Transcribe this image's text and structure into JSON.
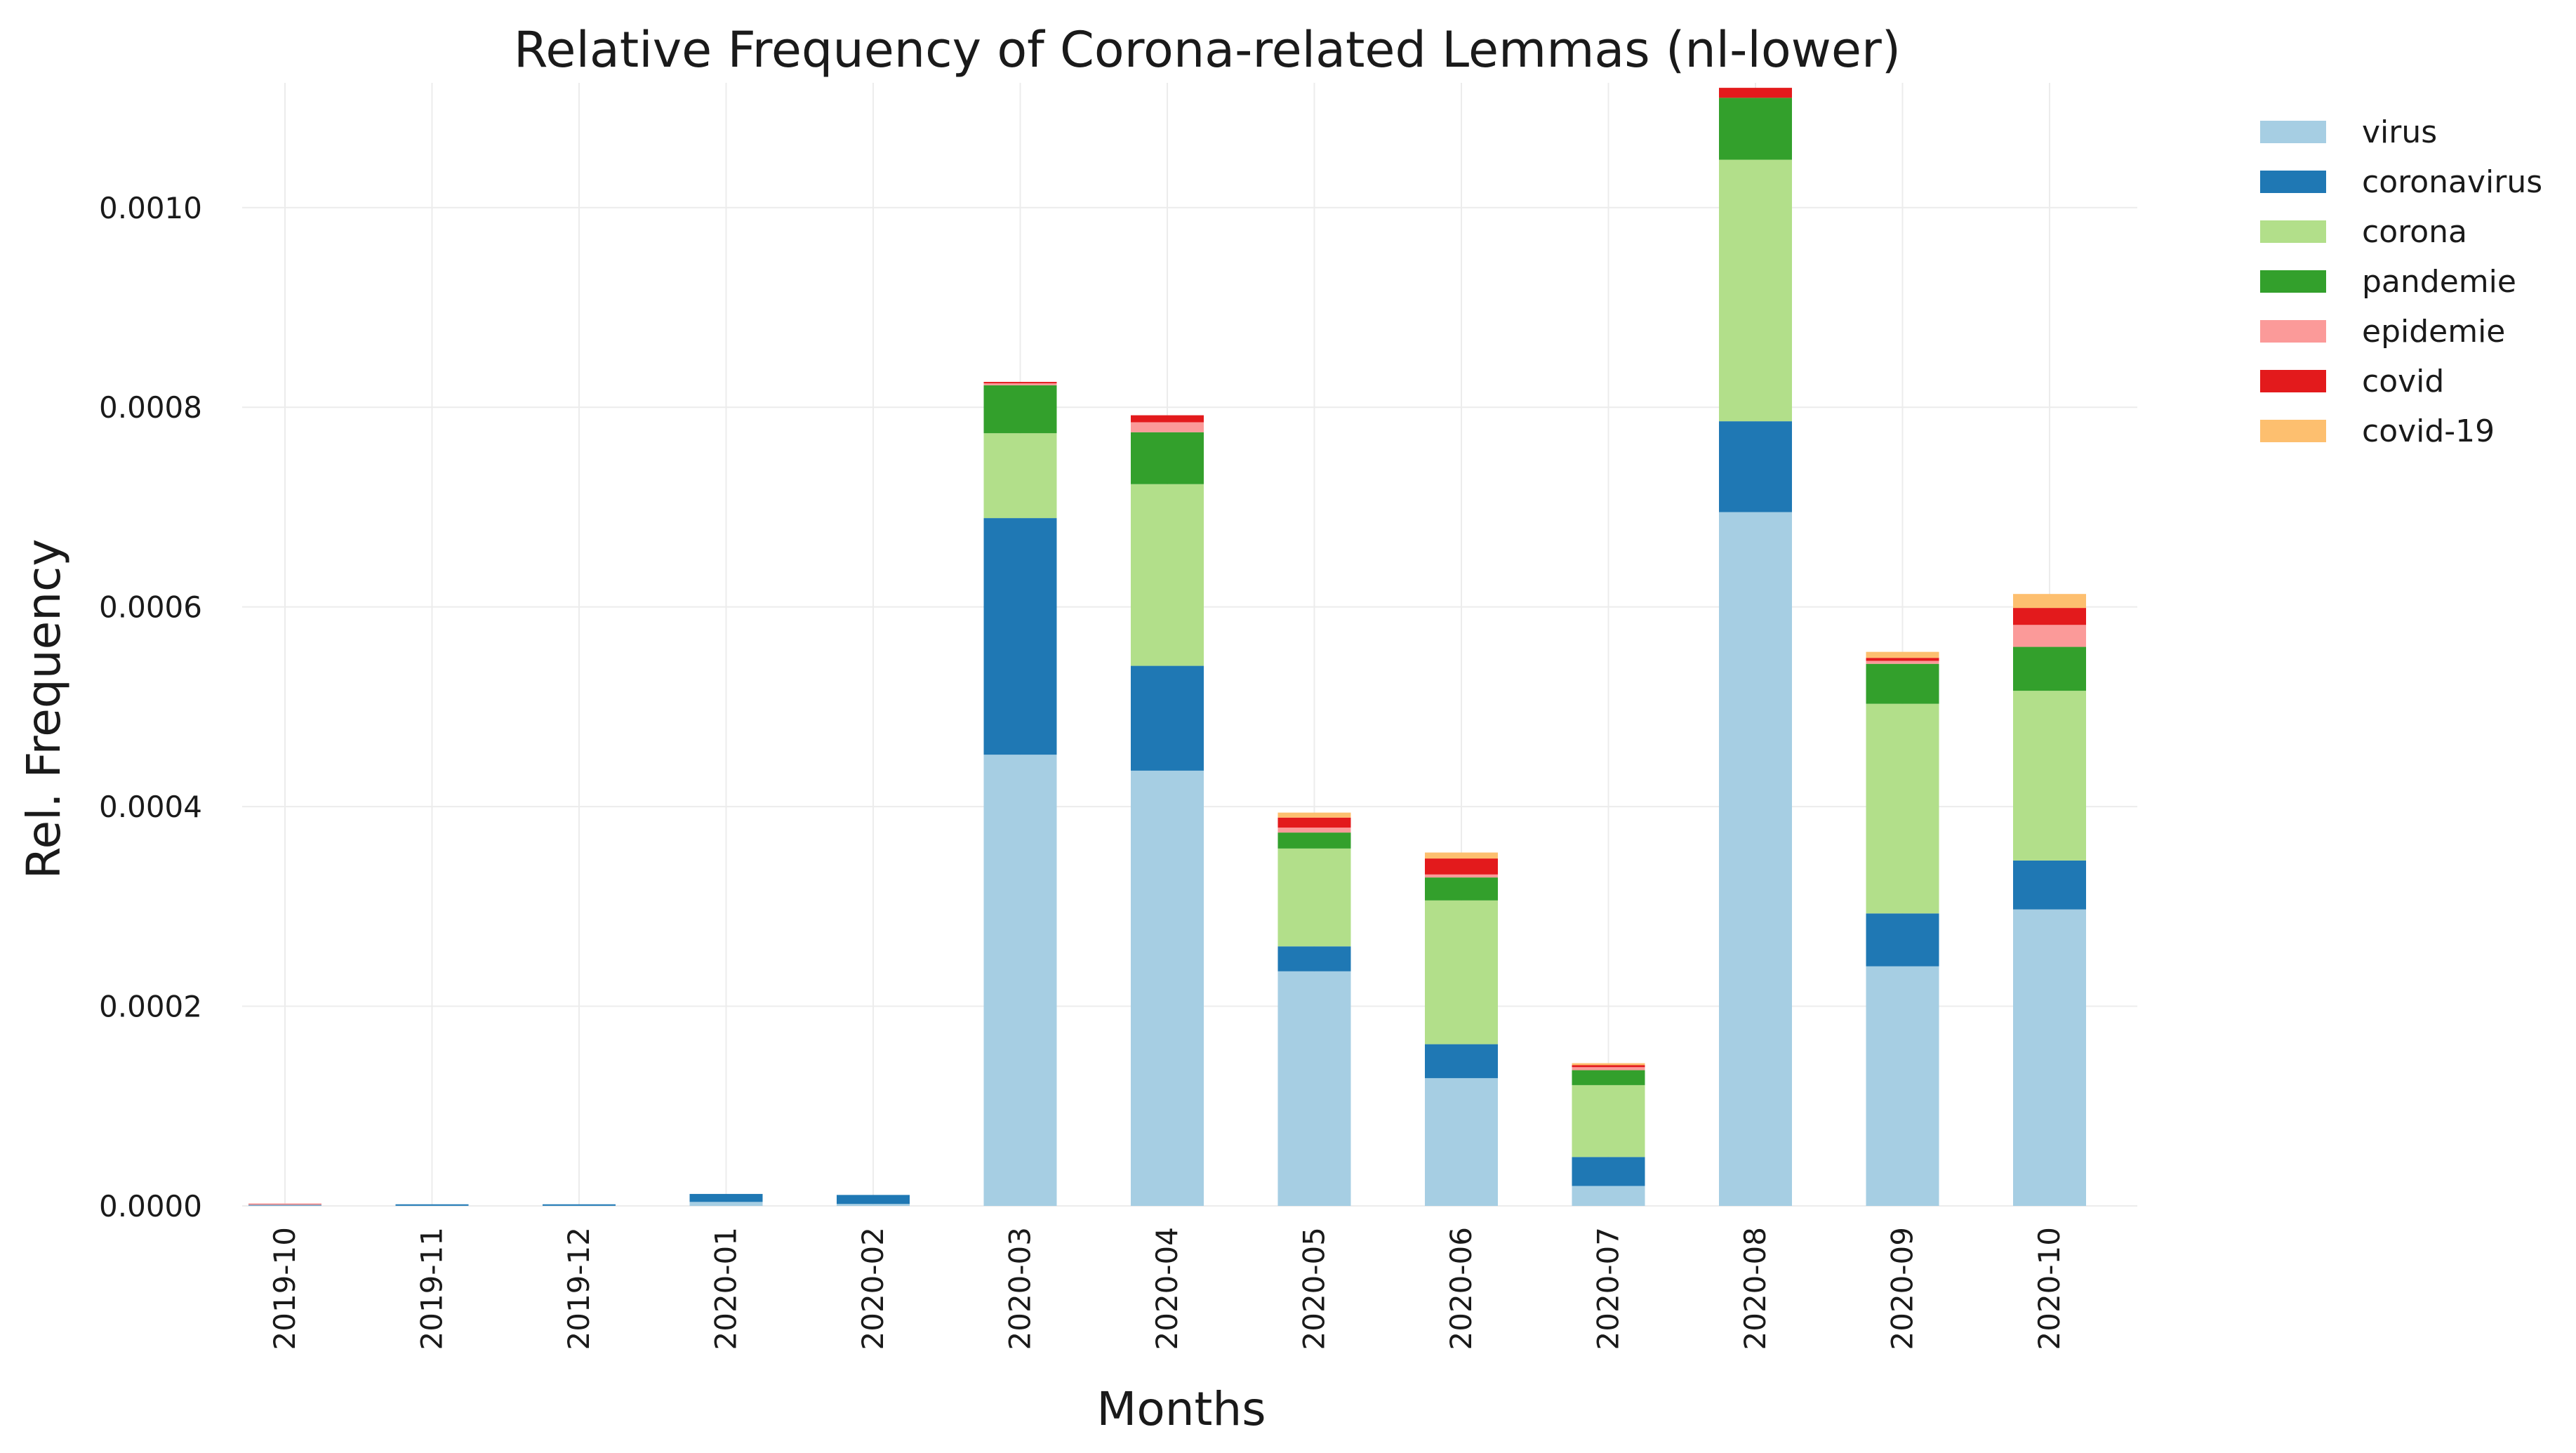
{
  "chart_data": {
    "type": "bar",
    "stacked": true,
    "title": "Relative Frequency of Corona-related Lemmas (nl-lower)",
    "xlabel": "Months",
    "ylabel": "Rel. Frequency",
    "ylim": [
      0,
      0.001125
    ],
    "yticks": [
      "0.0000",
      "0.0002",
      "0.0004",
      "0.0006",
      "0.0008",
      "0.0010"
    ],
    "ytick_values": [
      0,
      0.0002,
      0.0004,
      0.0006,
      0.0008,
      0.001
    ],
    "grid": true,
    "legend_position": "right",
    "categories": [
      "2019-10",
      "2019-11",
      "2019-12",
      "2020-01",
      "2020-02",
      "2020-03",
      "2020-04",
      "2020-05",
      "2020-06",
      "2020-07",
      "2020-08",
      "2020-09",
      "2020-10"
    ],
    "series": [
      {
        "name": "virus",
        "color": "#a6cee3",
        "values": [
          5e-07,
          2e-07,
          2e-07,
          4e-06,
          2e-06,
          0.000452,
          0.000436,
          0.000235,
          0.000128,
          2e-05,
          0.000695,
          0.00024,
          0.000297
        ]
      },
      {
        "name": "coronavirus",
        "color": "#1f78b4",
        "values": [
          5e-07,
          2e-07,
          2e-07,
          8e-06,
          9e-06,
          0.000237,
          0.000105,
          2.5e-05,
          3.4e-05,
          2.9e-05,
          9.1e-05,
          5.3e-05,
          4.9e-05
        ]
      },
      {
        "name": "corona",
        "color": "#b2df8a",
        "values": [
          0,
          0,
          0,
          0,
          0,
          8.5e-05,
          0.000182,
          9.8e-05,
          0.000144,
          7.2e-05,
          0.000262,
          0.00021,
          0.00017
        ]
      },
      {
        "name": "pandemie",
        "color": "#33a02c",
        "values": [
          0,
          0,
          0,
          0,
          0,
          4.8e-05,
          5.2e-05,
          1.6e-05,
          2.3e-05,
          1.5e-05,
          6.2e-05,
          4e-05,
          4.4e-05
        ]
      },
      {
        "name": "epidemie",
        "color": "#fb9a99",
        "values": [
          1.5e-06,
          0,
          0,
          0,
          0,
          2e-06,
          1e-05,
          5e-06,
          3e-06,
          3e-06,
          0,
          3e-06,
          2.2e-05
        ]
      },
      {
        "name": "covid",
        "color": "#e31a1c",
        "values": [
          0,
          0,
          0,
          0,
          0,
          1e-06,
          7e-06,
          1e-05,
          1.6e-05,
          2e-06,
          1e-05,
          3e-06,
          1.7e-05
        ]
      },
      {
        "name": "covid-19",
        "color": "#fdbf6f",
        "values": [
          0,
          0,
          0,
          0,
          0,
          0,
          0,
          5e-06,
          6e-06,
          2e-06,
          0,
          6e-06,
          1.4e-05
        ]
      }
    ]
  }
}
